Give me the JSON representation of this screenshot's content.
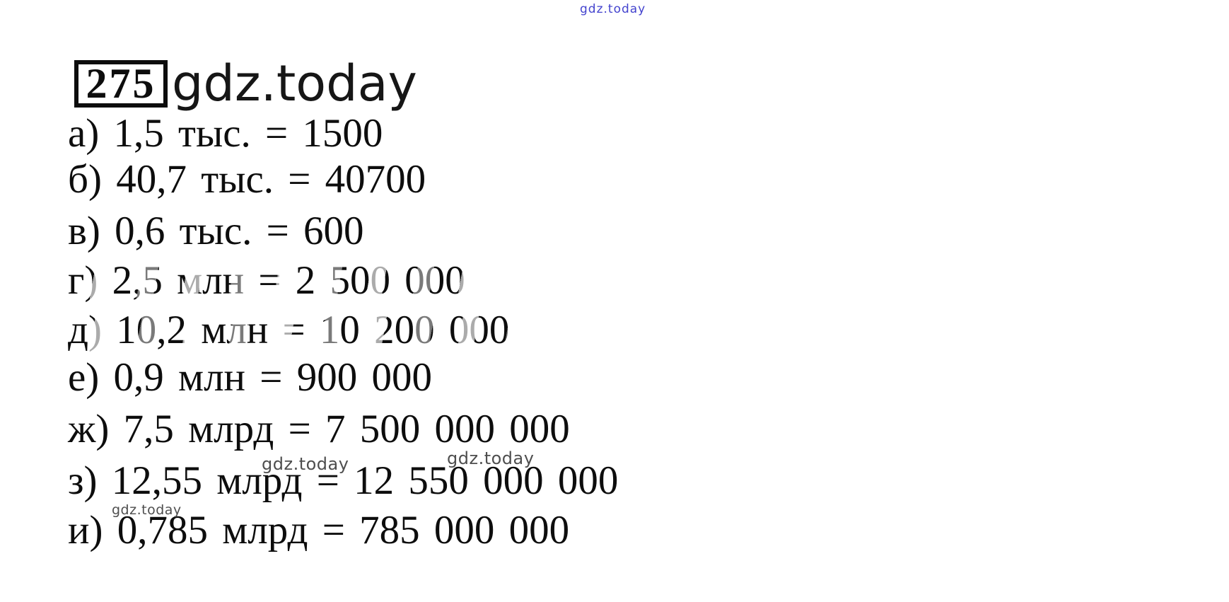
{
  "top_watermark": {
    "text": "gdz.today",
    "color": "#4343ce"
  },
  "header": {
    "problem_number": "275",
    "site_text": "gdz.today"
  },
  "solution": {
    "items": [
      {
        "label": "а)",
        "text": "а) 1,5 тыс. = 1500",
        "faded": false
      },
      {
        "label": "б)",
        "text": "б) 40,7 тыс. = 40700",
        "faded": false
      },
      {
        "label": "в)",
        "text": "в) 0,6 тыс. = 600",
        "faded": false
      },
      {
        "label": "г)",
        "text": "г) 2,5 млн = 2 500 000",
        "faded": true
      },
      {
        "label": "д)",
        "text": "д) 10,2 млн = 10 200 000",
        "faded": true
      },
      {
        "label": "е)",
        "text": "е) 0,9 млн = 900 000",
        "faded": false
      },
      {
        "label": "ж)",
        "text": "ж) 7,5 млрд = 7 500 000 000",
        "faded": false
      },
      {
        "label": "з)",
        "text": "з) 12,55 млрд = 12 550 000 000",
        "faded": false
      },
      {
        "label": "и)",
        "text": "и) 0,785 млрд = 785 000 000",
        "faded": false
      }
    ]
  },
  "inline_watermarks": [
    {
      "text": "gdz.today",
      "color": "#4e4e4e"
    },
    {
      "text": "gdz.today",
      "color": "#4e4e4e"
    },
    {
      "text": "gdz.today",
      "color": "#4e4e4e"
    }
  ],
  "colors": {
    "background": "#ffffff",
    "text_black": "#0d0d0d",
    "artifact_gray": "#9c9c9c",
    "watermark_gray": "#4e4e4e",
    "watermark_blue": "#4343ce"
  }
}
